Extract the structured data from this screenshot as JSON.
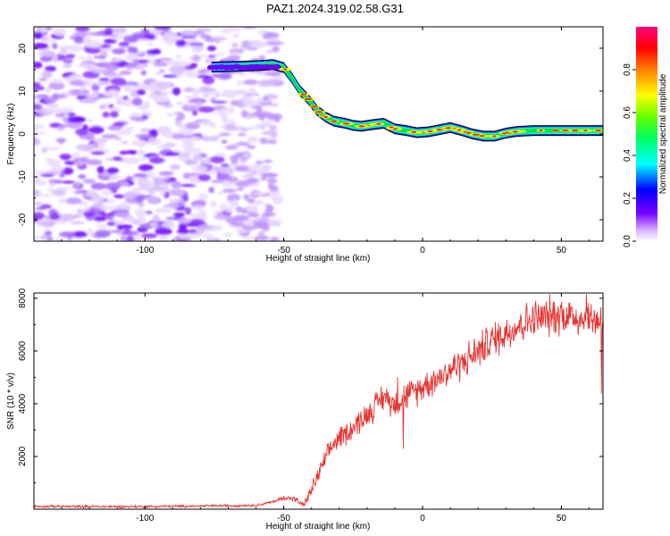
{
  "title": "PAZ1.2024.319.02.58.G31",
  "chart_data": [
    {
      "type": "heatmap",
      "title": "",
      "xlabel": "Height of straight line (km)",
      "ylabel": "Frequency (Hz)",
      "xlim": [
        -140,
        65
      ],
      "ylim": [
        -25,
        25
      ],
      "xticks": [
        -100,
        -50,
        0,
        50
      ],
      "xtick_labels": [
        "-100",
        "-50",
        "0",
        "50"
      ],
      "yticks": [
        -20,
        -10,
        0,
        10,
        20
      ],
      "ytick_labels": [
        "-20",
        "-10",
        "0",
        "10",
        "20"
      ],
      "colorbar": {
        "label": "Normalized spectral amplitude",
        "range": [
          0,
          1
        ],
        "ticks": [
          0.0,
          0.2,
          0.4,
          0.6,
          0.8
        ],
        "tick_labels": [
          "0.0",
          "0.2",
          "0.4",
          "0.6",
          "0.8"
        ],
        "colors": [
          "#ffffff",
          "#cc99ff",
          "#6600ff",
          "#0000ff",
          "#00ffff",
          "#00ff00",
          "#ffff00",
          "#ff8000",
          "#ff0000",
          "#ff0080"
        ]
      },
      "noise_region_x": [
        -140,
        -52
      ],
      "ridge": {
        "x": [
          -76,
          -65,
          -58,
          -54,
          -50,
          -47,
          -44,
          -41,
          -38,
          -35,
          -32,
          -28,
          -25,
          -22,
          -18,
          -14,
          -10,
          -6,
          -2,
          2,
          6,
          10,
          14,
          18,
          22,
          26,
          30,
          34,
          40,
          50,
          60,
          65
        ],
        "freq": [
          15.6,
          15.8,
          16,
          16.2,
          15.5,
          13,
          10,
          8,
          5.5,
          4,
          3,
          2.5,
          2,
          1.8,
          2.2,
          2.5,
          1.2,
          0.8,
          0.3,
          0.5,
          1,
          1.5,
          0.8,
          0,
          -0.5,
          -0.5,
          0.2,
          0.6,
          0.8,
          0.8,
          0.8,
          0.8
        ]
      }
    },
    {
      "type": "line",
      "title": "",
      "xlabel": "Height of straight line (km)",
      "ylabel": "SNR (10 * v/v)",
      "xlim": [
        -140,
        65
      ],
      "ylim": [
        0,
        8200
      ],
      "xticks": [
        -100,
        -50,
        0,
        50
      ],
      "xtick_labels": [
        "-100",
        "-50",
        "0",
        "50"
      ],
      "yticks": [
        2000,
        4000,
        6000,
        8000
      ],
      "ytick_labels": [
        "2000",
        "4000",
        "6000",
        "8000"
      ],
      "series": [
        {
          "color": "#e8322e",
          "x": [
            -140,
            -120,
            -100,
            -80,
            -60,
            -55,
            -52,
            -49,
            -46,
            -43,
            -41,
            -38,
            -35,
            -32,
            -29,
            -26,
            -22,
            -18,
            -14,
            -10,
            -6,
            -2,
            2,
            6,
            10,
            15,
            20,
            25,
            30,
            35,
            40,
            45,
            50,
            55,
            60,
            65
          ],
          "y": [
            110,
            100,
            100,
            120,
            150,
            250,
            350,
            450,
            380,
            150,
            500,
            1200,
            1900,
            2500,
            2800,
            3000,
            3400,
            3800,
            4300,
            4000,
            4300,
            4500,
            4800,
            5000,
            5300,
            5600,
            6000,
            6400,
            6700,
            7000,
            7200,
            7300,
            7400,
            7300,
            7200,
            7200
          ]
        }
      ]
    }
  ]
}
